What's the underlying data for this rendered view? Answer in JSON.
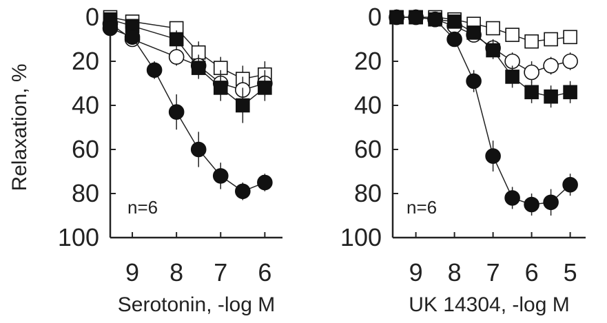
{
  "figure": {
    "ylabel": "Relaxation, %"
  },
  "chart_data": [
    {
      "type": "scatter",
      "title": "",
      "xlabel": "Serotonin, -log M",
      "ylabel": "Relaxation, %",
      "annotation": "n=6",
      "xlim": [
        9.5,
        5.6
      ],
      "ylim": [
        0,
        100
      ],
      "y_inverted": true,
      "xticks": [
        9,
        8,
        7,
        6
      ],
      "yticks": [
        0,
        20,
        40,
        60,
        80,
        100
      ],
      "series": [
        {
          "marker": "open-square",
          "x": [
            9.5,
            9.0,
            8.0,
            7.5,
            7.0,
            6.5,
            6.0
          ],
          "y": [
            0,
            2,
            5,
            16,
            23,
            28,
            26
          ],
          "err": [
            0,
            2,
            3,
            5,
            5,
            6,
            6
          ]
        },
        {
          "marker": "open-circle",
          "x": [
            9.5,
            9.0,
            8.0,
            7.5,
            7.0,
            6.5,
            6.0
          ],
          "y": [
            3,
            10,
            18,
            22,
            30,
            33,
            30
          ],
          "err": [
            2,
            3,
            4,
            5,
            6,
            6,
            6
          ]
        },
        {
          "marker": "filled-square",
          "x": [
            9.5,
            9.0,
            8.0,
            7.5,
            7.0,
            6.5,
            6.0
          ],
          "y": [
            1,
            4,
            10,
            23,
            32,
            40,
            32
          ],
          "err": [
            1,
            2,
            4,
            5,
            6,
            8,
            6
          ]
        },
        {
          "marker": "filled-circle",
          "x": [
            9.5,
            9.0,
            8.5,
            8.0,
            7.5,
            7.0,
            6.5,
            6.0
          ],
          "y": [
            5,
            9,
            24,
            43,
            60,
            72,
            79,
            75
          ],
          "err": [
            2,
            3,
            4,
            8,
            8,
            6,
            4,
            4
          ]
        }
      ]
    },
    {
      "type": "scatter",
      "title": "",
      "xlabel": "UK 14304, -log M",
      "ylabel": "",
      "annotation": "n=6",
      "xlim": [
        9.6,
        4.6
      ],
      "ylim": [
        0,
        100
      ],
      "y_inverted": true,
      "xticks": [
        9,
        8,
        7,
        6,
        5
      ],
      "yticks": [
        0,
        20,
        40,
        60,
        80,
        100
      ],
      "series": [
        {
          "marker": "open-square",
          "x": [
            9.5,
            9.0,
            8.5,
            8.0,
            7.5,
            7.0,
            6.5,
            6.0,
            5.5,
            5.0
          ],
          "y": [
            0,
            0,
            0,
            1,
            3,
            5,
            8,
            11,
            10,
            9
          ],
          "err": [
            0,
            0,
            0,
            1,
            2,
            3,
            3,
            3,
            3,
            3
          ]
        },
        {
          "marker": "open-circle",
          "x": [
            9.5,
            9.0,
            8.5,
            8.0,
            7.5,
            7.0,
            6.5,
            6.0,
            5.5,
            5.0
          ],
          "y": [
            0,
            0,
            1,
            4,
            8,
            14,
            20,
            25,
            22,
            20
          ],
          "err": [
            0,
            0,
            1,
            2,
            3,
            4,
            4,
            5,
            4,
            4
          ]
        },
        {
          "marker": "filled-square",
          "x": [
            9.5,
            9.0,
            8.5,
            8.0,
            7.5,
            7.0,
            6.5,
            6.0,
            5.5,
            5.0
          ],
          "y": [
            0,
            0,
            1,
            2,
            7,
            15,
            27,
            34,
            36,
            34
          ],
          "err": [
            0,
            0,
            1,
            2,
            3,
            4,
            5,
            5,
            5,
            5
          ]
        },
        {
          "marker": "filled-circle",
          "x": [
            9.5,
            9.0,
            8.5,
            8.0,
            7.5,
            7.0,
            6.5,
            6.0,
            5.5,
            5.0
          ],
          "y": [
            0,
            0,
            1,
            10,
            29,
            63,
            82,
            85,
            84,
            76
          ],
          "err": [
            0,
            0,
            1,
            3,
            5,
            7,
            5,
            5,
            6,
            5
          ]
        }
      ]
    }
  ]
}
